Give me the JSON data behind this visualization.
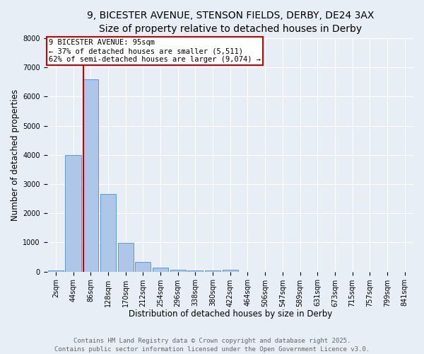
{
  "title_line1": "9, BICESTER AVENUE, STENSON FIELDS, DERBY, DE24 3AX",
  "title_line2": "Size of property relative to detached houses in Derby",
  "bar_categories": [
    "2sqm",
    "44sqm",
    "86sqm",
    "128sqm",
    "170sqm",
    "212sqm",
    "254sqm",
    "296sqm",
    "338sqm",
    "380sqm",
    "422sqm",
    "464sqm",
    "506sqm",
    "547sqm",
    "589sqm",
    "631sqm",
    "673sqm",
    "715sqm",
    "757sqm",
    "799sqm",
    "841sqm"
  ],
  "bar_values": [
    50,
    4000,
    6600,
    2650,
    975,
    340,
    140,
    75,
    50,
    40,
    60,
    0,
    0,
    0,
    0,
    0,
    0,
    0,
    0,
    0,
    0
  ],
  "bar_color": "#aec6e8",
  "bar_edge_color": "#5b9bd5",
  "vline_pos": 1.58,
  "vline_color": "#cc0000",
  "annotation_title": "9 BICESTER AVENUE: 95sqm",
  "annotation_line2": "← 37% of detached houses are smaller (5,511)",
  "annotation_line3": "62% of semi-detached houses are larger (9,074) →",
  "annotation_box_color": "#cc0000",
  "annotation_bg": "#ffffff",
  "xlabel": "Distribution of detached houses by size in Derby",
  "ylabel": "Number of detached properties",
  "ylim": [
    0,
    8000
  ],
  "yticks": [
    0,
    1000,
    2000,
    3000,
    4000,
    5000,
    6000,
    7000,
    8000
  ],
  "footer_line1": "Contains HM Land Registry data © Crown copyright and database right 2025.",
  "footer_line2": "Contains public sector information licensed under the Open Government Licence v3.0.",
  "bg_color": "#e8eef5",
  "grid_color": "#ffffff",
  "title_fontsize": 10,
  "subtitle_fontsize": 9,
  "axis_label_fontsize": 8.5,
  "tick_fontsize": 7,
  "footer_fontsize": 6.5,
  "ann_fontsize": 7.5
}
